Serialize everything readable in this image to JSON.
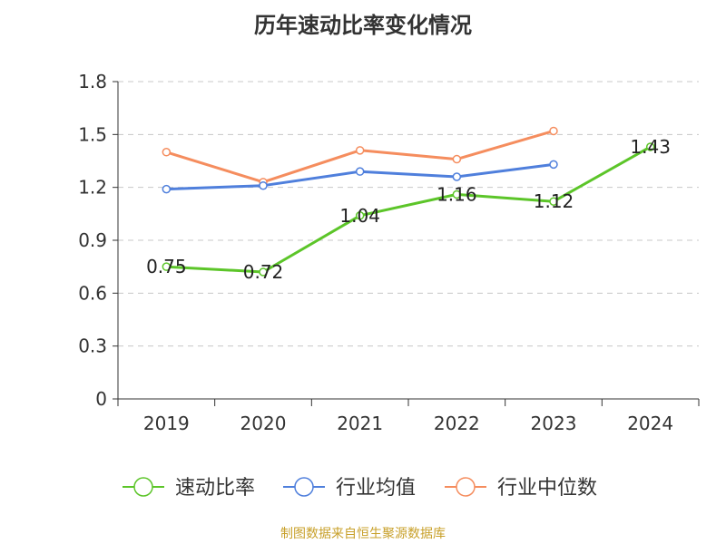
{
  "chart_data": {
    "type": "line",
    "title": "历年速动比率变化情况",
    "categories": [
      "2019",
      "2020",
      "2021",
      "2022",
      "2023",
      "2024"
    ],
    "ylim": [
      0,
      1.8
    ],
    "yticks": [
      "0",
      "0.3",
      "0.6",
      "0.9",
      "1.2",
      "1.5",
      "1.8"
    ],
    "grid": true,
    "legend_position": "bottom",
    "series": [
      {
        "name": "速动比率",
        "color": "#5cc529",
        "values": [
          0.75,
          0.72,
          1.04,
          1.16,
          1.12,
          1.43
        ],
        "labels": [
          "0.75",
          "0.72",
          "1.04",
          "1.16",
          "1.12",
          "1.43"
        ]
      },
      {
        "name": "行业均值",
        "color": "#4f7fdc",
        "values": [
          1.19,
          1.21,
          1.29,
          1.26,
          1.33,
          null
        ]
      },
      {
        "name": "行业中位数",
        "color": "#f58d5e",
        "values": [
          1.4,
          1.23,
          1.41,
          1.36,
          1.52,
          null
        ]
      }
    ]
  },
  "source_text": "制图数据来自恒生聚源数据库",
  "source_color": "#c8a02a"
}
